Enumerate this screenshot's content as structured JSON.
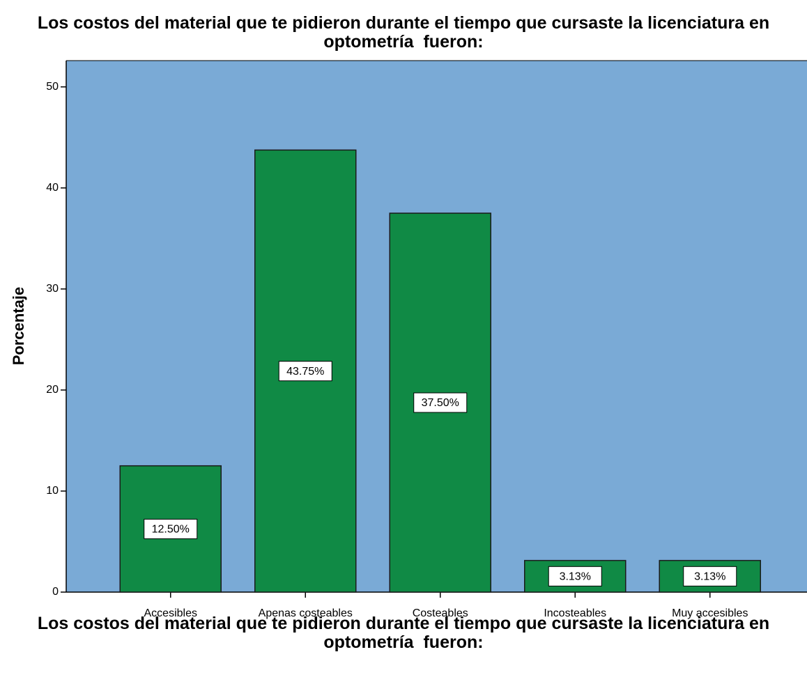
{
  "chart_data": {
    "type": "bar",
    "title": "Los costos del material que te pidieron durante el tiempo que cursaste la licenciatura en optometría  fueron:",
    "x_label": "Los costos del material que te pidieron durante el tiempo que cursaste la licenciatura en optometría  fueron:",
    "y_label": "Porcentaje",
    "categories": [
      "Accesibles",
      "Apenas costeables",
      "Costeables",
      "Incosteables",
      "Muy accesibles"
    ],
    "values": [
      12.5,
      43.75,
      37.5,
      3.13,
      3.13
    ],
    "value_labels": [
      "12.50%",
      "43.75%",
      "37.50%",
      "3.13%",
      "3.13%"
    ],
    "color": "#108a45",
    "background": "#7aaad6",
    "ylim": [
      0,
      52.6
    ],
    "yticks": [
      0,
      10,
      20,
      30,
      40,
      50
    ],
    "grid": false
  }
}
